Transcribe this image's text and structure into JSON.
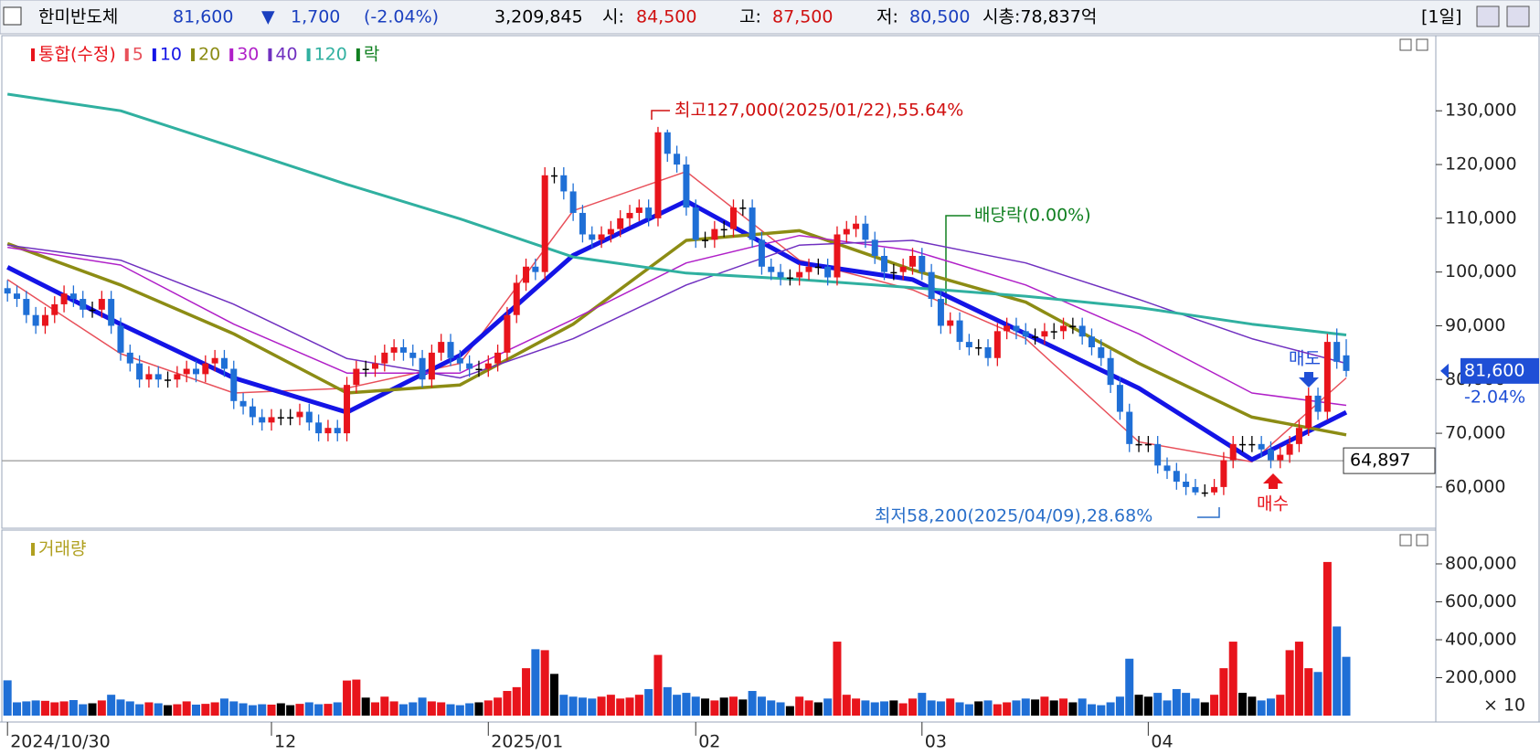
{
  "header": {
    "name": "한미반도체",
    "price": "81,600",
    "arrow": "▼",
    "change": "1,700",
    "change_pct": "(-2.04%)",
    "volume": "3,209,845",
    "open_label": "시:",
    "open": "84,500",
    "high_label": "고:",
    "high": "87,500",
    "low_label": "저:",
    "low": "80,500",
    "market_cap": "시총:78,837억",
    "period": "[1일]"
  },
  "chart_data": [
    {
      "type": "candlestick",
      "legend_title": "통합(수정)",
      "legend_extra": "락",
      "legend_extra_color": "#108020",
      "up_color": "#e8141c",
      "down_color": "#1f6fd6",
      "flat_color": "#000000",
      "xlim": [
        -0.6,
        151.5
      ],
      "ylim": [
        52500,
        143300
      ],
      "yticks": [
        {
          "value": 60000,
          "label": "60,000"
        },
        {
          "value": 70000,
          "label": "70,000"
        },
        {
          "value": 80000,
          "label": "80,000"
        },
        {
          "value": 90000,
          "label": "90,000"
        },
        {
          "value": 100000,
          "label": "100,000"
        },
        {
          "value": 110000,
          "label": "110,000"
        },
        {
          "value": 120000,
          "label": "120,000"
        },
        {
          "value": 130000,
          "label": "130,000"
        }
      ],
      "xticks": [
        {
          "value": 0,
          "label": "2024/10/30"
        },
        {
          "value": 28,
          "label": "12"
        },
        {
          "value": 51,
          "label": "2025/01"
        },
        {
          "value": 73,
          "label": "02"
        },
        {
          "value": 97,
          "label": "03"
        },
        {
          "value": 121,
          "label": "04"
        }
      ],
      "open": [
        97000,
        96000,
        95000,
        92000,
        90000,
        92000,
        94000,
        96000,
        95000,
        93000,
        93000,
        95000,
        90000,
        85000,
        83000,
        80000,
        81000,
        80000,
        80000,
        81000,
        82000,
        81000,
        83000,
        84000,
        82000,
        76000,
        75000,
        73000,
        72000,
        73000,
        73000,
        73000,
        74000,
        72000,
        70000,
        71000,
        70000,
        79000,
        82000,
        82000,
        83000,
        85000,
        86000,
        85000,
        84000,
        80000,
        85000,
        87000,
        84000,
        83000,
        82000,
        82000,
        83000,
        85000,
        92000,
        98000,
        101000,
        100000,
        118000,
        118000,
        115000,
        111000,
        107000,
        106000,
        107000,
        108000,
        110000,
        111000,
        112000,
        110000,
        126000,
        122000,
        120000,
        112000,
        106000,
        106000,
        108000,
        108000,
        112000,
        112000,
        106000,
        101000,
        100000,
        99000,
        99000,
        100000,
        101000,
        101000,
        99000,
        107000,
        108000,
        109000,
        106000,
        103000,
        100000,
        100000,
        101000,
        103000,
        100000,
        95000,
        90000,
        91000,
        87000,
        86000,
        86000,
        84000,
        89000,
        90000,
        89000,
        88000,
        88000,
        89000,
        89000,
        90000,
        90000,
        88000,
        86000,
        84000,
        79000,
        74000,
        68000,
        68000,
        68000,
        64000,
        63000,
        61000,
        60000,
        59000,
        59000,
        60000,
        65000,
        68000,
        68000,
        68000,
        67000,
        65000,
        66000,
        68000,
        71000,
        77000,
        74000,
        87000,
        84500
      ],
      "high": [
        98500,
        97500,
        96500,
        93500,
        93500,
        95500,
        97500,
        97500,
        96500,
        94500,
        96500,
        96500,
        91500,
        86500,
        84500,
        82500,
        82500,
        81500,
        82500,
        83500,
        83500,
        84500,
        85500,
        85500,
        83500,
        77500,
        76500,
        74500,
        74500,
        74500,
        74500,
        75500,
        75500,
        73500,
        72500,
        72500,
        80500,
        83500,
        83500,
        84500,
        86500,
        87500,
        87500,
        86500,
        85500,
        86500,
        88500,
        88500,
        85500,
        84500,
        83500,
        84500,
        86500,
        93500,
        99500,
        102500,
        102500,
        119500,
        119500,
        119500,
        116500,
        112500,
        108500,
        108500,
        109500,
        111500,
        112500,
        113500,
        113500,
        127000,
        126500,
        123500,
        121500,
        113500,
        107500,
        109500,
        109500,
        113500,
        113500,
        113500,
        107500,
        102500,
        101500,
        100500,
        101500,
        102500,
        102500,
        102500,
        108500,
        109500,
        110500,
        110500,
        107500,
        104500,
        101500,
        102500,
        104500,
        104500,
        101500,
        96500,
        92500,
        92500,
        88500,
        87500,
        87500,
        90500,
        91500,
        91500,
        90500,
        89500,
        90500,
        90500,
        91500,
        91500,
        91500,
        89500,
        87500,
        85500,
        80500,
        75500,
        69500,
        69500,
        69500,
        65500,
        64500,
        62500,
        61500,
        60500,
        61500,
        66500,
        69500,
        69500,
        69500,
        69500,
        68500,
        67500,
        69500,
        72500,
        78500,
        78500,
        88500,
        89500,
        87500
      ],
      "low": [
        94500,
        93500,
        90500,
        88500,
        88500,
        90500,
        92500,
        93500,
        91500,
        91500,
        91500,
        88500,
        83500,
        81500,
        78500,
        78500,
        78500,
        78500,
        78500,
        79500,
        79500,
        79500,
        81500,
        80500,
        74500,
        73500,
        71500,
        70500,
        70500,
        71500,
        71500,
        71500,
        70500,
        68500,
        68500,
        68500,
        68500,
        77500,
        80500,
        80500,
        81500,
        83500,
        83500,
        82500,
        78500,
        78500,
        83500,
        82500,
        81500,
        80500,
        80500,
        80500,
        81500,
        83500,
        90500,
        96500,
        98500,
        98500,
        116500,
        113500,
        109500,
        105500,
        104500,
        104500,
        105500,
        106500,
        108500,
        109500,
        108500,
        108500,
        120500,
        118500,
        110500,
        104500,
        104500,
        104500,
        106500,
        106500,
        110500,
        104500,
        99500,
        98500,
        97500,
        97500,
        97500,
        98500,
        99500,
        97500,
        97500,
        105500,
        106500,
        104500,
        101500,
        98500,
        98500,
        98500,
        99500,
        98500,
        93500,
        88500,
        88500,
        85500,
        84500,
        84500,
        82500,
        82500,
        87500,
        87500,
        86500,
        86500,
        86500,
        87500,
        87500,
        88500,
        86500,
        84500,
        82500,
        77500,
        72500,
        66500,
        66500,
        66500,
        62500,
        61500,
        59500,
        58500,
        58500,
        58200,
        58500,
        58500,
        63500,
        66500,
        66500,
        65500,
        63500,
        63500,
        64500,
        66500,
        69500,
        72500,
        72500,
        82000,
        80500
      ],
      "close": [
        96000,
        95000,
        92000,
        90000,
        92000,
        94000,
        96000,
        95000,
        93000,
        93000,
        95000,
        90000,
        85000,
        83000,
        80000,
        81000,
        80000,
        80000,
        81000,
        82000,
        81000,
        83000,
        84000,
        82000,
        76000,
        75000,
        73000,
        72000,
        73000,
        73000,
        73000,
        74000,
        72000,
        70000,
        71000,
        70000,
        79000,
        82000,
        82000,
        83000,
        85000,
        86000,
        85000,
        84000,
        80000,
        85000,
        87000,
        84000,
        83000,
        82000,
        82000,
        83000,
        85000,
        92000,
        98000,
        101000,
        100000,
        118000,
        118000,
        115000,
        111000,
        107000,
        106000,
        107000,
        108000,
        110000,
        111000,
        112000,
        110000,
        126000,
        122000,
        120000,
        112000,
        106000,
        106000,
        108000,
        108000,
        112000,
        112000,
        106000,
        101000,
        100000,
        99000,
        99000,
        100000,
        101000,
        101000,
        99000,
        107000,
        108000,
        109000,
        106000,
        103000,
        100000,
        100000,
        101000,
        103000,
        100000,
        95000,
        90000,
        91000,
        87000,
        86000,
        86000,
        84000,
        89000,
        90000,
        89000,
        88000,
        88000,
        89000,
        89000,
        90000,
        90000,
        88000,
        86000,
        84000,
        79000,
        74000,
        68000,
        68000,
        68000,
        64000,
        63000,
        61000,
        60000,
        59000,
        59000,
        60000,
        65000,
        68000,
        68000,
        68000,
        67000,
        65000,
        66000,
        68000,
        71000,
        77000,
        74000,
        87000,
        83300,
        81600
      ],
      "series": [
        {
          "name": "5",
          "color": "#e8505a",
          "line_width": 1.5,
          "x": [
            0,
            12,
            24,
            36,
            48,
            60,
            72,
            84,
            96,
            108,
            120,
            132,
            142
          ],
          "values": [
            98600,
            84800,
            77500,
            78400,
            83000,
            111400,
            118700,
            102200,
            96700,
            87600,
            68400,
            64700,
            80300
          ]
        },
        {
          "name": "10",
          "color": "#1414e6",
          "line_width": 5,
          "x": [
            0,
            12,
            24,
            36,
            48,
            60,
            72,
            84,
            96,
            108,
            120,
            132,
            142
          ],
          "values": [
            100900,
            90300,
            80300,
            73900,
            84500,
            103100,
            113200,
            101700,
            98600,
            88500,
            78400,
            65100,
            73900
          ]
        },
        {
          "name": "20",
          "color": "#8c8c14",
          "line_width": 3.5,
          "x": [
            0,
            12,
            24,
            36,
            48,
            60,
            72,
            84,
            96,
            108,
            120,
            132,
            142
          ],
          "values": [
            105300,
            97600,
            88500,
            77500,
            79000,
            90300,
            105900,
            107700,
            100400,
            94400,
            83000,
            73000,
            69700
          ]
        },
        {
          "name": "30",
          "color": "#b020c8",
          "line_width": 1.5,
          "x": [
            0,
            12,
            24,
            36,
            48,
            60,
            72,
            84,
            96,
            108,
            120,
            132,
            142
          ],
          "values": [
            104600,
            101300,
            90300,
            81200,
            81200,
            91200,
            101700,
            106800,
            104000,
            97600,
            88500,
            77500,
            75200
          ]
        },
        {
          "name": "40",
          "color": "#7030c0",
          "line_width": 1.5,
          "x": [
            0,
            12,
            24,
            36,
            48,
            60,
            72,
            84,
            96,
            108,
            120,
            132,
            142
          ],
          "values": [
            105000,
            102200,
            94000,
            83900,
            80300,
            87600,
            97600,
            105000,
            105900,
            101700,
            94900,
            87600,
            83000
          ]
        },
        {
          "name": "120",
          "color": "#30b0a0",
          "line_width": 3,
          "x": [
            0,
            12,
            24,
            36,
            48,
            60,
            72,
            84,
            96,
            108,
            120,
            132,
            142
          ],
          "values": [
            133100,
            130000,
            123200,
            116300,
            109900,
            102800,
            99800,
            98600,
            97100,
            95500,
            93400,
            90300,
            88300
          ]
        }
      ],
      "reference_line": {
        "value": 64897,
        "label": "64,897"
      },
      "last_price_label": "81,600",
      "last_change_label": "-2.04%",
      "annotations": {
        "max": "최고127,000(2025/01/22),55.64%",
        "dividend": "배당락(0.00%)",
        "min": "최저58,200(2025/04/09),28.68%",
        "sell": "매도",
        "buy": "매수"
      }
    },
    {
      "type": "bar",
      "legend_title": "거래량",
      "legend_color": "#b0a020",
      "multiplier_label": "× 10",
      "ylim": [
        0,
        930000
      ],
      "yticks": [
        {
          "value": 200000,
          "label": "200,000"
        },
        {
          "value": 400000,
          "label": "400,000"
        },
        {
          "value": 600000,
          "label": "600,000"
        },
        {
          "value": 800000,
          "label": "800,000"
        }
      ],
      "values": [
        186000,
        70000,
        75000,
        80000,
        78000,
        70000,
        75000,
        82000,
        60000,
        65000,
        80000,
        110000,
        85000,
        75000,
        60000,
        70000,
        65000,
        55000,
        60000,
        75000,
        58000,
        62000,
        70000,
        90000,
        75000,
        65000,
        55000,
        60000,
        58000,
        65000,
        55000,
        62000,
        70000,
        60000,
        62000,
        70000,
        185000,
        190000,
        95000,
        70000,
        100000,
        75000,
        60000,
        70000,
        95000,
        75000,
        70000,
        60000,
        55000,
        65000,
        70000,
        80000,
        95000,
        130000,
        150000,
        250000,
        350000,
        345000,
        220000,
        110000,
        100000,
        95000,
        90000,
        100000,
        110000,
        90000,
        95000,
        110000,
        140000,
        320000,
        150000,
        110000,
        120000,
        100000,
        90000,
        80000,
        95000,
        100000,
        85000,
        130000,
        100000,
        80000,
        70000,
        50000,
        100000,
        80000,
        70000,
        90000,
        390000,
        110000,
        90000,
        80000,
        70000,
        75000,
        80000,
        65000,
        90000,
        120000,
        80000,
        75000,
        90000,
        70000,
        60000,
        75000,
        80000,
        60000,
        70000,
        80000,
        90000,
        85000,
        100000,
        80000,
        90000,
        70000,
        90000,
        60000,
        55000,
        70000,
        100000,
        300000,
        110000,
        100000,
        120000,
        80000,
        140000,
        120000,
        90000,
        70000,
        110000,
        250000,
        390000,
        120000,
        100000,
        80000,
        90000,
        110000,
        345000,
        390000,
        250000,
        230000,
        810000,
        470000,
        310000
      ]
    }
  ]
}
